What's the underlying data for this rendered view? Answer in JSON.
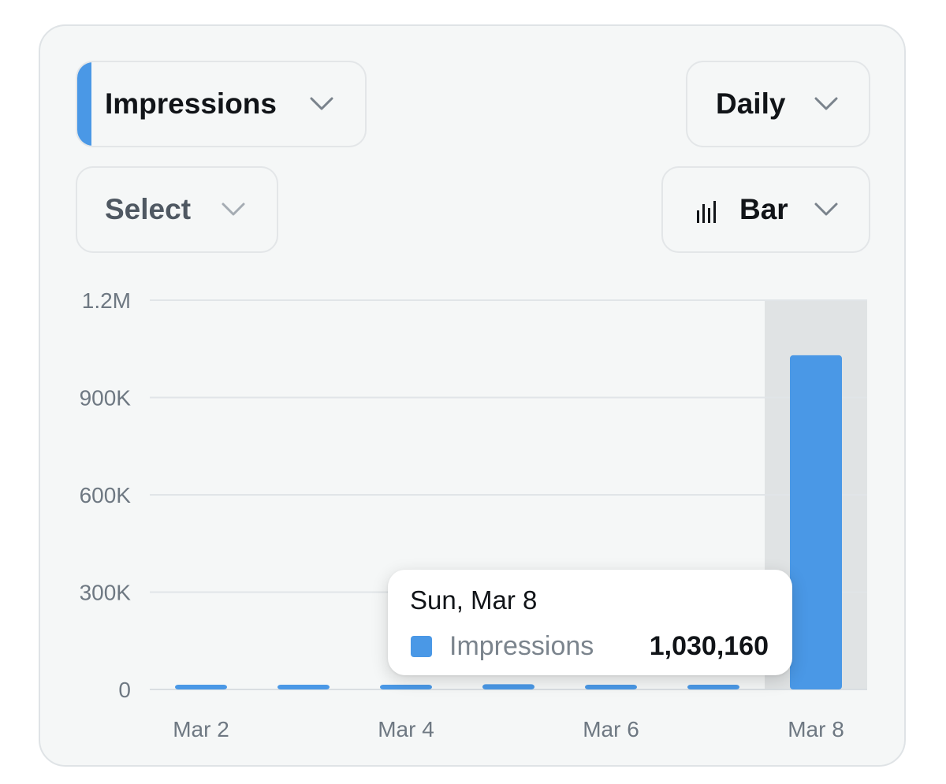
{
  "controls": {
    "metric_dropdown": {
      "label": "Impressions",
      "accent_color": "#4a98e6"
    },
    "secondary_dropdown": {
      "label": "Select"
    },
    "interval_dropdown": {
      "label": "Daily"
    },
    "chart_type_dropdown": {
      "label": "Bar",
      "icon": "bar-chart-icon"
    }
  },
  "tooltip": {
    "date": "Sun, Mar 8",
    "series": "Impressions",
    "value": "1,030,160",
    "swatch_color": "#4a98e6"
  },
  "chart_data": {
    "type": "bar",
    "categories": [
      "Mar 2",
      "Mar 3",
      "Mar 4",
      "Mar 5",
      "Mar 6",
      "Mar 7",
      "Mar 8"
    ],
    "x_tick_labels": [
      "Mar 2",
      "Mar 4",
      "Mar 6",
      "Mar 8"
    ],
    "series": [
      {
        "values": [
          8000,
          3500,
          2500,
          16000,
          12000,
          5000,
          1030160
        ],
        "color": "#4a98e6"
      }
    ],
    "ylim": [
      0,
      1200000
    ],
    "y_ticks": [
      0,
      300000,
      600000,
      900000,
      1200000
    ],
    "y_tick_labels": [
      "0",
      "300K",
      "600K",
      "900K",
      "1.2M"
    ],
    "highlighted_category": "Mar 8",
    "grid": true,
    "title": "",
    "xlabel": "",
    "ylabel": ""
  }
}
